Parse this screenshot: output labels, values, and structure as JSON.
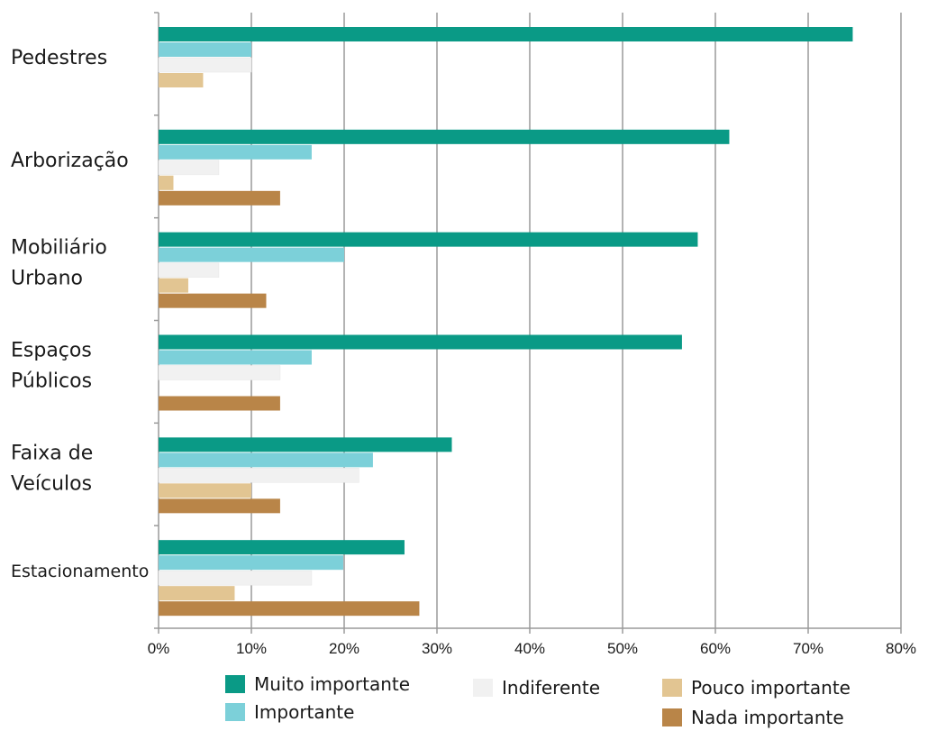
{
  "chart_data": {
    "type": "bar",
    "orientation": "horizontal",
    "title": "",
    "xlabel": "",
    "ylabel": "",
    "xlim": [
      0,
      80
    ],
    "x_ticks": [
      "0%",
      "10%",
      "20%",
      "30%",
      "40%",
      "50%",
      "60%",
      "70%",
      "80%"
    ],
    "grid": "vertical",
    "legend_position": "bottom",
    "categories": [
      [
        "Pedestres"
      ],
      [
        "Arborização"
      ],
      [
        "Mobiliário",
        "Urbano"
      ],
      [
        "Espaços",
        "Públicos"
      ],
      [
        "Faixa de",
        "Veículos"
      ],
      [
        "Estacionamento"
      ]
    ],
    "series": [
      {
        "name": "Muito importante",
        "color": "#0a9a86",
        "values": [
          74.8,
          61.5,
          58.1,
          56.4,
          31.6,
          26.5
        ]
      },
      {
        "name": "Importante",
        "color": "#7cd0d9",
        "values": [
          10.0,
          16.5,
          20.0,
          16.5,
          23.1,
          19.9
        ]
      },
      {
        "name": "Indiferente",
        "color": "#f1f1f1",
        "values": [
          10.0,
          6.5,
          6.5,
          13.1,
          21.6,
          16.5
        ]
      },
      {
        "name": "Pouco importante",
        "color": "#e2c592",
        "values": [
          4.8,
          1.6,
          3.2,
          0,
          10.0,
          8.2
        ]
      },
      {
        "name": "Nada importante",
        "color": "#b98548",
        "values": [
          0,
          13.1,
          11.6,
          13.1,
          13.1,
          28.1
        ]
      }
    ]
  }
}
